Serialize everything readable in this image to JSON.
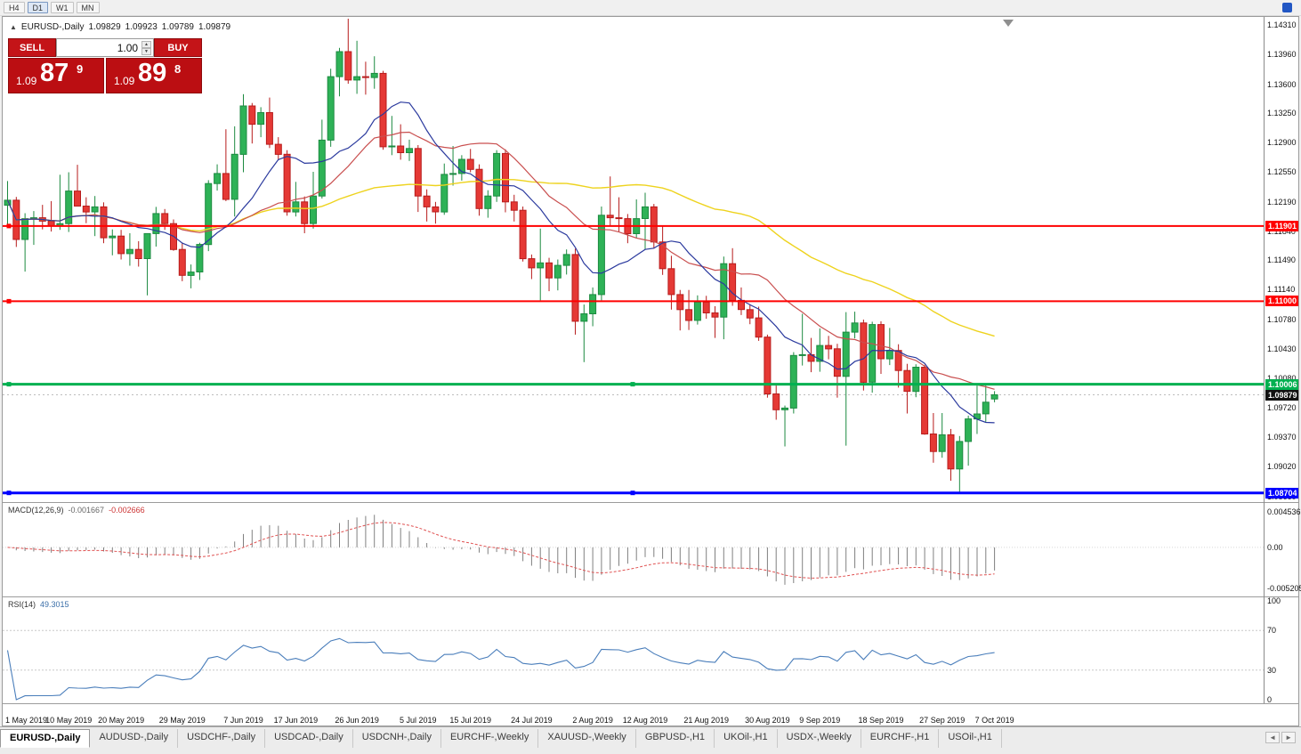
{
  "icons": {
    "info_marker": "▲",
    "spin_up": "▲",
    "spin_down": "▼",
    "tab_scroll_left": "◄",
    "tab_scroll_right": "►"
  },
  "toolbar": {
    "timeframes": [
      "H4",
      "D1",
      "W1",
      "MN"
    ],
    "active_timeframe": "D1"
  },
  "chart": {
    "info": {
      "symbol_period": "EURUSD-,Daily",
      "open": "1.09829",
      "high": "1.09923",
      "low": "1.09789",
      "close": "1.09879"
    },
    "trade_panel": {
      "sell_label": "SELL",
      "buy_label": "BUY",
      "volume": "1.00",
      "sell_price": {
        "big": "1.09",
        "pips": "87",
        "pipette": "9"
      },
      "buy_price": {
        "big": "1.09",
        "pips": "89",
        "pipette": "8"
      }
    },
    "price_axis": {
      "labels": [
        "1.14310",
        "1.13960",
        "1.13600",
        "1.13250",
        "1.12900",
        "1.12550",
        "1.12190",
        "1.11840",
        "1.11490",
        "1.11140",
        "1.10780",
        "1.10430",
        "1.10080",
        "1.09720",
        "1.09370",
        "1.09020",
        "1.08660"
      ]
    },
    "hlines": [
      {
        "value": 1.11901,
        "label": "1.11901",
        "color": "#ff0000",
        "width": 2,
        "handles": [
          "left"
        ]
      },
      {
        "value": 1.11,
        "label": "1.11000",
        "color": "#ff0000",
        "width": 2,
        "handles": [
          "left"
        ]
      },
      {
        "value": 1.10006,
        "label": "1.10006",
        "color": "#00b050",
        "width": 3,
        "handles": [
          "left",
          "center"
        ]
      },
      {
        "value": 1.08704,
        "label": "1.08704",
        "color": "#0000ff",
        "width": 3,
        "handles": [
          "left",
          "center"
        ]
      }
    ],
    "current_price": {
      "value": 1.09879,
      "label": "1.09879",
      "tag_color": "#111111"
    },
    "date_axis": [
      {
        "text": "1 May 2019",
        "index": 0
      },
      {
        "text": "10 May 2019",
        "index": 7
      },
      {
        "text": "20 May 2019",
        "index": 13
      },
      {
        "text": "29 May 2019",
        "index": 20
      },
      {
        "text": "7 Jun 2019",
        "index": 27
      },
      {
        "text": "17 Jun 2019",
        "index": 33
      },
      {
        "text": "26 Jun 2019",
        "index": 40
      },
      {
        "text": "5 Jul 2019",
        "index": 47
      },
      {
        "text": "15 Jul 2019",
        "index": 53
      },
      {
        "text": "24 Jul 2019",
        "index": 60
      },
      {
        "text": "2 Aug 2019",
        "index": 67
      },
      {
        "text": "12 Aug 2019",
        "index": 73
      },
      {
        "text": "21 Aug 2019",
        "index": 80
      },
      {
        "text": "30 Aug 2019",
        "index": 87
      },
      {
        "text": "9 Sep 2019",
        "index": 93
      },
      {
        "text": "18 Sep 2019",
        "index": 100
      },
      {
        "text": "27 Sep 2019",
        "index": 107
      },
      {
        "text": "7 Oct 2019",
        "index": 113
      }
    ]
  },
  "chart_data": {
    "type": "candlestick",
    "symbol": "EURUSD-",
    "timeframe": "Daily",
    "date_range": "1 May 2019 - 7 Oct 2019",
    "visible_price_range": [
      1.08594,
      1.14406
    ],
    "up_color": "#2eb257",
    "down_color": "#e53935",
    "candles": [
      [
        1.1215,
        1.1244,
        1.1188,
        1.1221
      ],
      [
        1.1221,
        1.1225,
        1.1165,
        1.1174
      ],
      [
        1.1174,
        1.12055,
        1.11355,
        1.1199
      ],
      [
        1.1199,
        1.1208,
        1.11675,
        1.12
      ],
      [
        1.12,
        1.12155,
        1.1186,
        1.1196
      ],
      [
        1.1196,
        1.122,
        1.11835,
        1.119
      ],
      [
        1.119,
        1.12515,
        1.11855,
        1.1193
      ],
      [
        1.1193,
        1.12545,
        1.1183,
        1.1232
      ],
      [
        1.1232,
        1.12635,
        1.12185,
        1.1214
      ],
      [
        1.1214,
        1.12245,
        1.11935,
        1.1207
      ],
      [
        1.1207,
        1.1226,
        1.1178,
        1.1213
      ],
      [
        1.1213,
        1.12185,
        1.11695,
        1.1176
      ],
      [
        1.1176,
        1.1186,
        1.1155,
        1.1178
      ],
      [
        1.1178,
        1.11855,
        1.115,
        1.1157
      ],
      [
        1.1157,
        1.11815,
        1.11425,
        1.1162
      ],
      [
        1.1162,
        1.1172,
        1.11415,
        1.1151
      ],
      [
        1.1151,
        1.11815,
        1.1107,
        1.1181
      ],
      [
        1.1181,
        1.1213,
        1.11655,
        1.1205
      ],
      [
        1.1205,
        1.12105,
        1.11855,
        1.1193
      ],
      [
        1.1193,
        1.1198,
        1.11605,
        1.1162
      ],
      [
        1.1162,
        1.117,
        1.1124,
        1.1131
      ],
      [
        1.1131,
        1.1144,
        1.11155,
        1.1135
      ],
      [
        1.1135,
        1.117,
        1.11255,
        1.1168
      ],
      [
        1.1168,
        1.1245,
        1.116,
        1.1241
      ],
      [
        1.1241,
        1.1264,
        1.12325,
        1.1253
      ],
      [
        1.1253,
        1.1306,
        1.122,
        1.1222
      ],
      [
        1.1222,
        1.13095,
        1.12015,
        1.1276
      ],
      [
        1.1276,
        1.1348,
        1.12545,
        1.1334
      ],
      [
        1.1334,
        1.13375,
        1.1289,
        1.1312
      ],
      [
        1.1312,
        1.13325,
        1.12965,
        1.1326
      ],
      [
        1.1326,
        1.1344,
        1.12835,
        1.1288
      ],
      [
        1.1288,
        1.12965,
        1.1269,
        1.1276
      ],
      [
        1.1276,
        1.1281,
        1.12025,
        1.1207
      ],
      [
        1.1207,
        1.1243,
        1.12015,
        1.1219
      ],
      [
        1.1219,
        1.12255,
        1.11815,
        1.1193
      ],
      [
        1.1193,
        1.1255,
        1.1187,
        1.1226
      ],
      [
        1.1226,
        1.13175,
        1.1223,
        1.1293
      ],
      [
        1.1293,
        1.13785,
        1.1285,
        1.1369
      ],
      [
        1.1369,
        1.14035,
        1.13455,
        1.1399
      ],
      [
        1.1399,
        1.14385,
        1.13605,
        1.1365
      ],
      [
        1.1365,
        1.1412,
        1.13485,
        1.1369
      ],
      [
        1.1369,
        1.1387,
        1.13475,
        1.1368
      ],
      [
        1.1368,
        1.13935,
        1.13545,
        1.1373
      ],
      [
        1.1373,
        1.1376,
        1.12815,
        1.1285
      ],
      [
        1.1285,
        1.1322,
        1.1275,
        1.1286
      ],
      [
        1.1286,
        1.1312,
        1.12695,
        1.1278
      ],
      [
        1.1278,
        1.12935,
        1.1268,
        1.1283
      ],
      [
        1.1283,
        1.1287,
        1.1207,
        1.1226
      ],
      [
        1.1226,
        1.1234,
        1.11955,
        1.1213
      ],
      [
        1.1213,
        1.1219,
        1.1193,
        1.1207
      ],
      [
        1.1207,
        1.1265,
        1.12035,
        1.1252
      ],
      [
        1.1252,
        1.1286,
        1.12385,
        1.1253
      ],
      [
        1.1253,
        1.1275,
        1.12445,
        1.127
      ],
      [
        1.127,
        1.12825,
        1.12545,
        1.1258
      ],
      [
        1.1258,
        1.1264,
        1.12025,
        1.1211
      ],
      [
        1.1211,
        1.1233,
        1.12,
        1.1226
      ],
      [
        1.1226,
        1.1281,
        1.1219,
        1.1277
      ],
      [
        1.1277,
        1.1282,
        1.12065,
        1.1219
      ],
      [
        1.1219,
        1.12275,
        1.11955,
        1.1209
      ],
      [
        1.1209,
        1.12135,
        1.11475,
        1.1151
      ],
      [
        1.1151,
        1.1156,
        1.11265,
        1.114
      ],
      [
        1.114,
        1.1187,
        1.1101,
        1.1146
      ],
      [
        1.1146,
        1.1152,
        1.1112,
        1.1128
      ],
      [
        1.1128,
        1.115,
        1.1113,
        1.1143
      ],
      [
        1.1143,
        1.1162,
        1.1132,
        1.1156
      ],
      [
        1.1156,
        1.1163,
        1.106,
        1.1076
      ],
      [
        1.1076,
        1.1096,
        1.1027,
        1.1085
      ],
      [
        1.1085,
        1.11165,
        1.107,
        1.1108
      ],
      [
        1.1108,
        1.12135,
        1.1101,
        1.1203
      ],
      [
        1.1203,
        1.12495,
        1.11905,
        1.12
      ],
      [
        1.12,
        1.12245,
        1.11835,
        1.1199
      ],
      [
        1.1199,
        1.12045,
        1.11695,
        1.1181
      ],
      [
        1.1181,
        1.1222,
        1.1176,
        1.1199
      ],
      [
        1.1199,
        1.123,
        1.1162,
        1.1213
      ],
      [
        1.1213,
        1.12165,
        1.1163,
        1.1171
      ],
      [
        1.1171,
        1.11905,
        1.11315,
        1.1139
      ],
      [
        1.1139,
        1.11545,
        1.109,
        1.1108
      ],
      [
        1.1108,
        1.11135,
        1.1065,
        1.109
      ],
      [
        1.109,
        1.11135,
        1.10655,
        1.1077
      ],
      [
        1.1077,
        1.1107,
        1.1072,
        1.1099
      ],
      [
        1.1099,
        1.11065,
        1.1079,
        1.1086
      ],
      [
        1.1086,
        1.1094,
        1.1056,
        1.1081
      ],
      [
        1.1081,
        1.11535,
        1.10545,
        1.1145
      ],
      [
        1.1145,
        1.11635,
        1.10945,
        1.1101
      ],
      [
        1.1101,
        1.11165,
        1.10835,
        1.109
      ],
      [
        1.109,
        1.10965,
        1.10725,
        1.108
      ],
      [
        1.108,
        1.10935,
        1.10525,
        1.1057
      ],
      [
        1.1057,
        1.106,
        1.09845,
        1.0989
      ],
      [
        1.0989,
        1.0999,
        1.0958,
        1.097
      ],
      [
        1.097,
        1.0975,
        1.0926,
        1.0972
      ],
      [
        1.0972,
        1.1039,
        1.09655,
        1.1035
      ],
      [
        1.1035,
        1.1085,
        1.1023,
        1.1036
      ],
      [
        1.1036,
        1.1056,
        1.1015,
        1.1028
      ],
      [
        1.1028,
        1.10675,
        1.10155,
        1.1047
      ],
      [
        1.1047,
        1.10585,
        1.10305,
        1.1043
      ],
      [
        1.1043,
        1.1049,
        1.09845,
        1.101
      ],
      [
        1.101,
        1.1087,
        1.0927,
        1.1063
      ],
      [
        1.1063,
        1.10875,
        1.10555,
        1.1074
      ],
      [
        1.1074,
        1.1078,
        1.0993,
        1.1003
      ],
      [
        1.1003,
        1.10755,
        1.09905,
        1.1072
      ],
      [
        1.1072,
        1.1076,
        1.1013,
        1.1031
      ],
      [
        1.1031,
        1.1068,
        1.10235,
        1.1041
      ],
      [
        1.1041,
        1.10485,
        1.09965,
        1.1017
      ],
      [
        1.1017,
        1.1025,
        1.09655,
        1.0992
      ],
      [
        1.0992,
        1.10245,
        1.0985,
        1.1021
      ],
      [
        1.1021,
        1.1024,
        1.094,
        1.0941
      ],
      [
        1.0941,
        1.0966,
        1.09065,
        1.092
      ],
      [
        1.092,
        1.0966,
        1.09125,
        1.094
      ],
      [
        1.094,
        1.0947,
        1.0885,
        1.0899
      ],
      [
        1.0899,
        1.09385,
        1.0871,
        1.0932
      ],
      [
        1.0932,
        1.0963,
        1.0903,
        1.0959
      ],
      [
        1.0959,
        1.0999,
        1.0941,
        1.0965
      ],
      [
        1.0965,
        1.0999,
        1.09555,
        1.0979
      ],
      [
        1.09829,
        1.09923,
        1.09789,
        1.09879
      ]
    ],
    "overlays": [
      {
        "name": "ma-slow",
        "type": "sma",
        "period": 50,
        "color": "#eed31e",
        "width": 1.4
      },
      {
        "name": "ma-medium",
        "type": "sma",
        "period": 20,
        "color": "#c94f4f",
        "width": 1.2
      },
      {
        "name": "ma-fast",
        "type": "sma",
        "period": 10,
        "color": "#2b3a9e",
        "width": 1.2
      }
    ],
    "indicators": [
      {
        "name": "MACD",
        "label": "MACD(12,26,9)",
        "params": [
          12,
          26,
          9
        ],
        "display_main": "-0.001667",
        "display_signal": "-0.002666",
        "axis_labels": [
          "0.004536",
          "0.00",
          "-0.005205"
        ],
        "histogram_color": "#808080",
        "signal_color": "#e05252"
      },
      {
        "name": "RSI",
        "label": "RSI(14)",
        "params": [
          14
        ],
        "display_value": "49.3015",
        "axis_labels": [
          "100",
          "70",
          "30",
          "0"
        ],
        "levels": [
          70,
          30
        ],
        "line_color": "#4a7ebb"
      }
    ]
  },
  "tabs": [
    {
      "label": "EURUSD-,Daily",
      "active": true
    },
    {
      "label": "AUDUSD-,Daily",
      "active": false
    },
    {
      "label": "USDCHF-,Daily",
      "active": false
    },
    {
      "label": "USDCAD-,Daily",
      "active": false
    },
    {
      "label": "USDCNH-,Daily",
      "active": false
    },
    {
      "label": "EURCHF-,Weekly",
      "active": false
    },
    {
      "label": "XAUUSD-,Weekly",
      "active": false
    },
    {
      "label": "GBPUSD-,H1",
      "active": false
    },
    {
      "label": "UKOil-,H1",
      "active": false
    },
    {
      "label": "USDX-,Weekly",
      "active": false
    },
    {
      "label": "EURCHF-,H1",
      "active": false
    },
    {
      "label": "USOil-,H1",
      "active": false
    }
  ]
}
